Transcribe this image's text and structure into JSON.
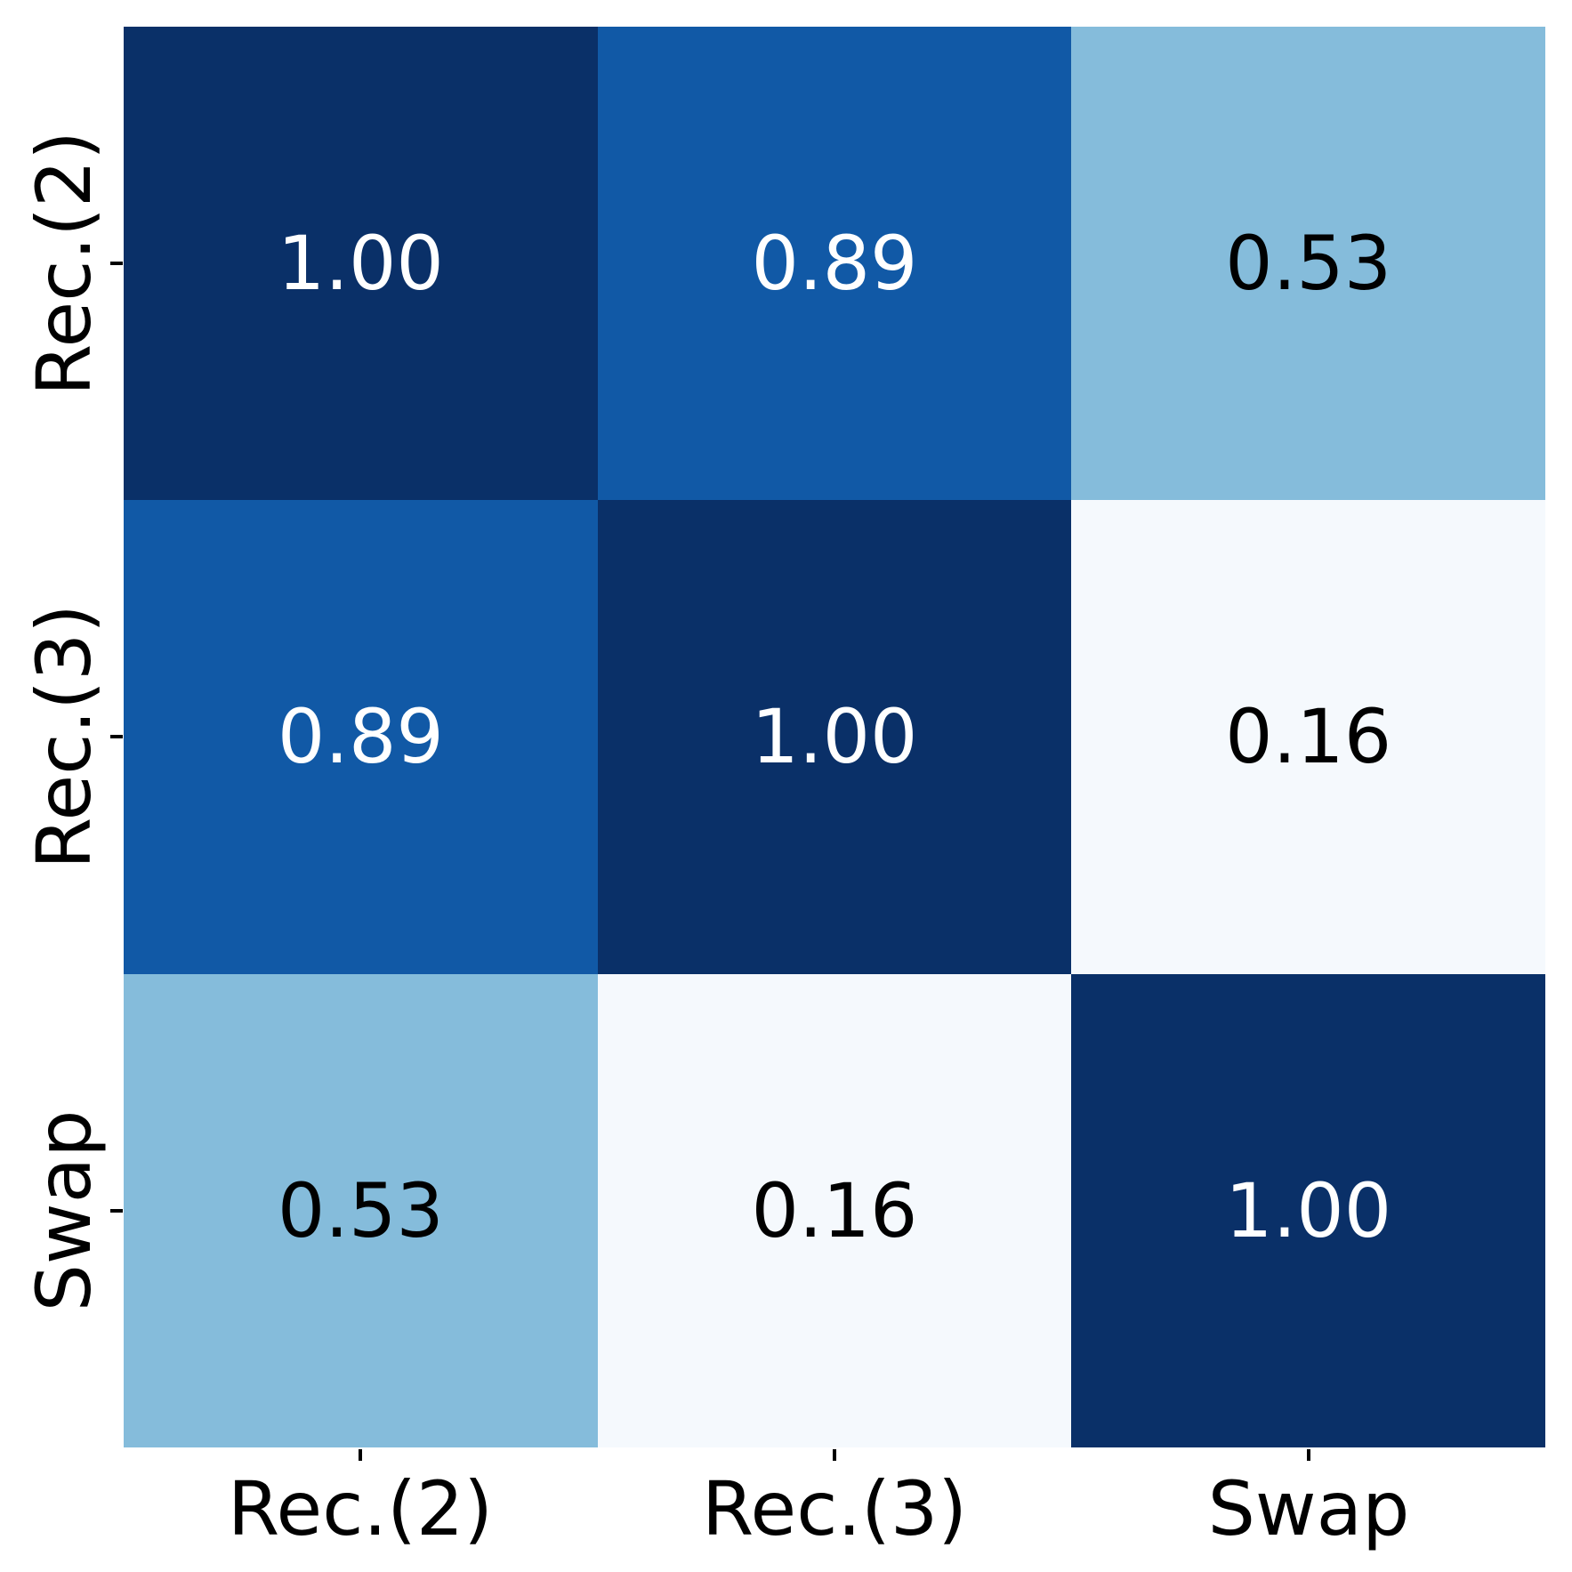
{
  "chart_data": {
    "type": "heatmap",
    "title": "",
    "x_labels": [
      "Rec.(2)",
      "Rec.(3)",
      "Swap"
    ],
    "y_labels": [
      "Rec.(2)",
      "Rec.(3)",
      "Swap"
    ],
    "matrix": [
      [
        1.0,
        0.89,
        0.53
      ],
      [
        0.89,
        1.0,
        0.16
      ],
      [
        0.53,
        0.16,
        1.0
      ]
    ],
    "colormap": "Blues",
    "value_format": "two-decimal",
    "grid": false,
    "legend": "none",
    "colors": {
      "value_1_00": "#0a3068",
      "value_0_89": "#1159a6",
      "value_0_53": "#85bcdb",
      "value_0_16": "#f5f9fd",
      "text_on_dark": "#ffffff",
      "text_on_light": "#000000",
      "axis_tick": "#000000",
      "background": "#ffffff"
    },
    "cells": [
      {
        "row": "Rec.(2)",
        "col": "Rec.(2)",
        "label": "1.00",
        "bg": "#0a3068",
        "fg": "#ffffff"
      },
      {
        "row": "Rec.(2)",
        "col": "Rec.(3)",
        "label": "0.89",
        "bg": "#1159a6",
        "fg": "#ffffff"
      },
      {
        "row": "Rec.(2)",
        "col": "Swap",
        "label": "0.53",
        "bg": "#85bcdb",
        "fg": "#000000"
      },
      {
        "row": "Rec.(3)",
        "col": "Rec.(2)",
        "label": "0.89",
        "bg": "#1159a6",
        "fg": "#ffffff"
      },
      {
        "row": "Rec.(3)",
        "col": "Rec.(3)",
        "label": "1.00",
        "bg": "#0a3068",
        "fg": "#ffffff"
      },
      {
        "row": "Rec.(3)",
        "col": "Swap",
        "label": "0.16",
        "bg": "#f5f9fd",
        "fg": "#000000"
      },
      {
        "row": "Swap",
        "col": "Rec.(2)",
        "label": "0.53",
        "bg": "#85bcdb",
        "fg": "#000000"
      },
      {
        "row": "Swap",
        "col": "Rec.(3)",
        "label": "0.16",
        "bg": "#f5f9fd",
        "fg": "#000000"
      },
      {
        "row": "Swap",
        "col": "Swap",
        "label": "1.00",
        "bg": "#0a3068",
        "fg": "#ffffff"
      }
    ]
  }
}
